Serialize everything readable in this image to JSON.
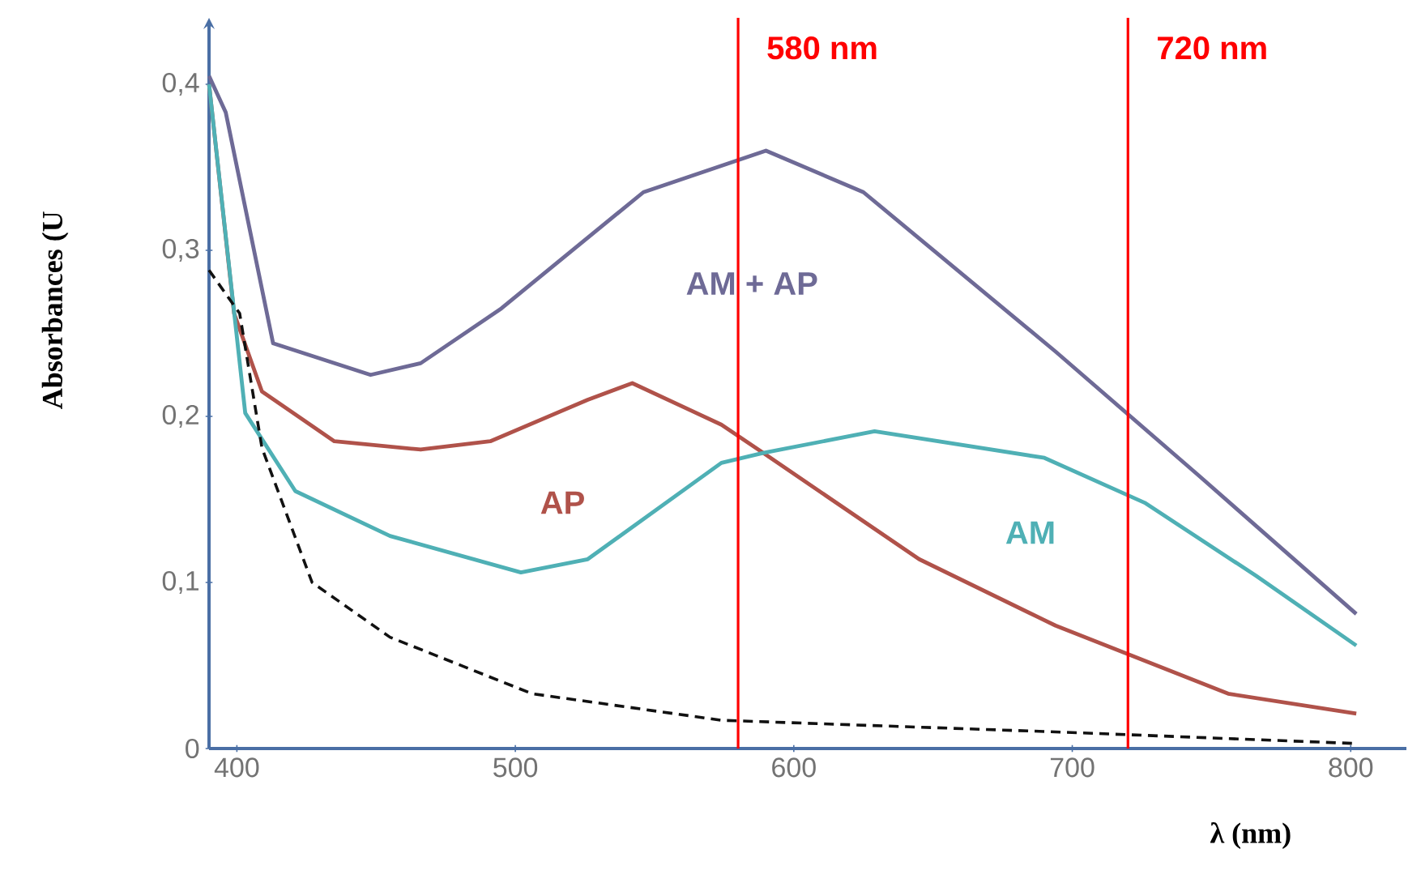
{
  "chart_data": {
    "type": "line",
    "xlabel": "λ (nm)",
    "ylabel": "Absorbances (U",
    "xlim": [
      390,
      820
    ],
    "ylim": [
      0,
      0.44
    ],
    "xticks": [
      400,
      500,
      600,
      700,
      800
    ],
    "yticks": [
      0,
      {
        "value": 0.1,
        "label": "0,1"
      },
      {
        "value": 0.2,
        "label": "0,2"
      },
      {
        "value": 0.3,
        "label": "0,3"
      },
      {
        "value": 0.4,
        "label": "0,4"
      }
    ],
    "series": [
      {
        "name": "AM + AP",
        "color": "#6e6a96",
        "x": [
          390,
          396,
          413,
          448,
          466,
          495,
          546,
          590,
          625,
          694,
          745,
          802
        ],
        "values": [
          0.405,
          0.383,
          0.244,
          0.225,
          0.232,
          0.265,
          0.335,
          0.36,
          0.335,
          0.239,
          0.165,
          0.081
        ]
      },
      {
        "name": "AP",
        "color": "#b0524a",
        "x": [
          390,
          399,
          409,
          435,
          466,
          491,
          526,
          542,
          574,
          589,
          645,
          694,
          756,
          802
        ],
        "values": [
          0.4,
          0.262,
          0.215,
          0.185,
          0.18,
          0.185,
          0.21,
          0.22,
          0.195,
          0.178,
          0.114,
          0.074,
          0.033,
          0.021
        ]
      },
      {
        "name": "AM",
        "color": "#4fb0b5",
        "x": [
          390,
          403,
          421,
          455,
          502,
          526,
          574,
          589,
          629,
          690,
          726,
          766,
          802
        ],
        "values": [
          0.4,
          0.202,
          0.155,
          0.128,
          0.106,
          0.114,
          0.172,
          0.178,
          0.191,
          0.175,
          0.148,
          0.104,
          0.062
        ]
      },
      {
        "color": "#111111",
        "line_style": "dashed",
        "x": [
          390,
          401,
          409,
          427,
          455,
          506,
          574,
          694,
          802
        ],
        "values": [
          0.288,
          0.262,
          0.181,
          0.1,
          0.067,
          0.033,
          0.017,
          0.01,
          0.003
        ]
      }
    ],
    "ref_lines": [
      {
        "axis": "x",
        "value": 580,
        "label": "580 nm",
        "color": "#ff0000"
      },
      {
        "axis": "x",
        "value": 720,
        "label": "720 nm",
        "color": "#ff0000"
      }
    ]
  }
}
